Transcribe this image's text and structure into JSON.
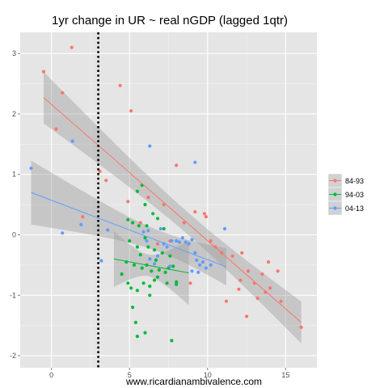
{
  "chart_data": {
    "type": "scatter",
    "title": "1yr change in UR ~ real nGDP (lagged 1qtr)",
    "xlabel": "www.ricardianambivalence.com",
    "ylabel": "",
    "xlim": [
      -2,
      17
    ],
    "ylim": [
      -2.2,
      3.35
    ],
    "x_ticks": [
      0,
      5,
      10,
      15
    ],
    "y_ticks": [
      -2,
      -1,
      0,
      1,
      2,
      3
    ],
    "x_tick_labels": [
      "0",
      "5",
      "10",
      "15"
    ],
    "y_tick_labels": [
      "-2",
      "-1",
      "0",
      "1",
      "2",
      "3"
    ],
    "grid": true,
    "legend_position": "right",
    "vline": {
      "x": 3,
      "style": "dotted",
      "color": "#000000"
    },
    "series": [
      {
        "name": "84-93",
        "color": "#F8766D",
        "points": [
          [
            1.3,
            3.1
          ],
          [
            -0.5,
            2.7
          ],
          [
            0.7,
            2.35
          ],
          [
            0.3,
            1.75
          ],
          [
            2.0,
            0.3
          ],
          [
            3.1,
            1.05
          ],
          [
            3.5,
            0.9
          ],
          [
            4.4,
            2.47
          ],
          [
            5.1,
            2.05
          ],
          [
            4.9,
            0.55
          ],
          [
            6.2,
            0.62
          ],
          [
            7.2,
            0.5
          ],
          [
            8.0,
            1.15
          ],
          [
            8.5,
            0.2
          ],
          [
            9.2,
            0.38
          ],
          [
            9.8,
            0.35
          ],
          [
            9.9,
            0.3
          ],
          [
            10.2,
            -0.1
          ],
          [
            10.5,
            -0.2
          ],
          [
            10.9,
            -0.3
          ],
          [
            11.2,
            -1.1
          ],
          [
            11.6,
            -0.35
          ],
          [
            12.0,
            -0.9
          ],
          [
            12.1,
            -0.75
          ],
          [
            12.2,
            -0.3
          ],
          [
            12.5,
            -1.35
          ],
          [
            12.6,
            -0.6
          ],
          [
            13.0,
            -0.8
          ],
          [
            13.2,
            -1.05
          ],
          [
            13.5,
            -0.65
          ],
          [
            13.7,
            -0.95
          ],
          [
            13.9,
            -0.45
          ],
          [
            14.0,
            -0.88
          ],
          [
            14.5,
            -0.6
          ],
          [
            14.7,
            -1.1
          ],
          [
            16.0,
            -1.53
          ],
          [
            8.9,
            -0.8
          ],
          [
            7.6,
            -0.1
          ],
          [
            5.7,
            0.2
          ],
          [
            6.8,
            -0.15
          ]
        ],
        "fit": {
          "x": [
            -0.5,
            16
          ],
          "y": [
            2.27,
            -1.45
          ]
        }
      },
      {
        "name": "94-03",
        "color": "#00BA38",
        "points": [
          [
            5.5,
            0.72
          ],
          [
            5.8,
            0.82
          ],
          [
            6.0,
            0.5
          ],
          [
            6.5,
            0.35
          ],
          [
            6.8,
            0.27
          ],
          [
            6.1,
            0.15
          ],
          [
            5.6,
            0.15
          ],
          [
            4.9,
            0.25
          ],
          [
            5.2,
            0.2
          ],
          [
            7.2,
            0.1
          ],
          [
            5.0,
            -0.1
          ],
          [
            5.5,
            -0.2
          ],
          [
            6.0,
            -0.05
          ],
          [
            6.2,
            -0.2
          ],
          [
            6.6,
            -0.25
          ],
          [
            7.1,
            -0.3
          ],
          [
            7.6,
            -0.35
          ],
          [
            4.8,
            -0.45
          ],
          [
            5.3,
            -0.5
          ],
          [
            5.8,
            -0.55
          ],
          [
            6.1,
            -0.5
          ],
          [
            6.4,
            -0.6
          ],
          [
            6.9,
            -0.58
          ],
          [
            7.3,
            -0.62
          ],
          [
            7.5,
            -0.55
          ],
          [
            4.5,
            -0.65
          ],
          [
            4.9,
            -0.8
          ],
          [
            5.1,
            -0.88
          ],
          [
            5.5,
            -0.92
          ],
          [
            5.9,
            -0.8
          ],
          [
            6.3,
            -0.85
          ],
          [
            6.6,
            -0.75
          ],
          [
            6.8,
            -0.7
          ],
          [
            7.4,
            -0.8
          ],
          [
            8.0,
            -0.78
          ],
          [
            6.3,
            -1.0
          ],
          [
            5.2,
            -1.2
          ],
          [
            5.4,
            -1.45
          ],
          [
            5.5,
            -1.68
          ],
          [
            6.0,
            -1.62
          ],
          [
            7.7,
            -1.75
          ],
          [
            8.0,
            -0.82
          ],
          [
            5.7,
            -0.33
          ],
          [
            6.7,
            -0.42
          ],
          [
            7.8,
            -0.52
          ]
        ],
        "fit": {
          "x": [
            4,
            8.8
          ],
          "y": [
            -0.4,
            -0.63
          ]
        }
      },
      {
        "name": "04-13",
        "color": "#619CFF",
        "points": [
          [
            -1.3,
            1.1
          ],
          [
            1.35,
            1.55
          ],
          [
            6.3,
            1.47
          ],
          [
            9.2,
            1.2
          ],
          [
            0.7,
            0.03
          ],
          [
            1.9,
            0.17
          ],
          [
            3.2,
            -0.43
          ],
          [
            3.6,
            0.08
          ],
          [
            6.2,
            0.07
          ],
          [
            7.0,
            0.1
          ],
          [
            7.2,
            -0.15
          ],
          [
            7.4,
            -0.2
          ],
          [
            7.7,
            -0.1
          ],
          [
            8.0,
            -0.1
          ],
          [
            8.2,
            -0.12
          ],
          [
            8.4,
            -0.05
          ],
          [
            8.6,
            -0.12
          ],
          [
            8.8,
            -0.15
          ],
          [
            9.0,
            -0.08
          ],
          [
            9.2,
            -0.3
          ],
          [
            9.3,
            -0.42
          ],
          [
            9.5,
            -0.5
          ],
          [
            9.7,
            -0.45
          ],
          [
            9.9,
            -0.55
          ],
          [
            10.2,
            -0.5
          ],
          [
            11.1,
            0.1
          ],
          [
            6.3,
            -0.4
          ],
          [
            6.8,
            -0.35
          ],
          [
            6.6,
            -0.48
          ],
          [
            7.6,
            -0.52
          ],
          [
            9.0,
            -0.6
          ],
          [
            9.4,
            -0.62
          ],
          [
            6.1,
            -0.1
          ],
          [
            5.9,
            0.05
          ]
        ],
        "fit": {
          "x": [
            -1.3,
            11.2
          ],
          "y": [
            0.7,
            -0.53
          ]
        }
      }
    ]
  }
}
